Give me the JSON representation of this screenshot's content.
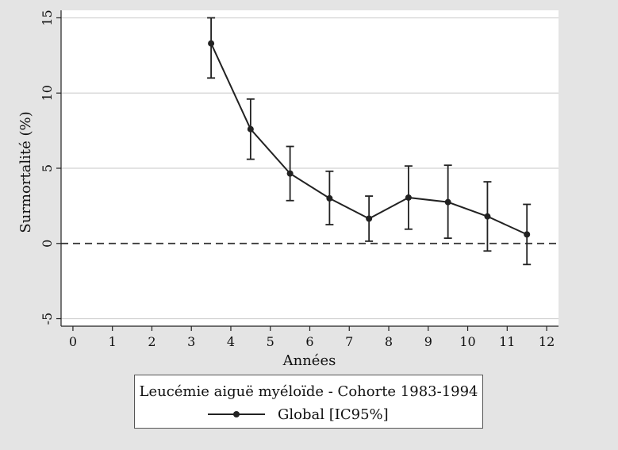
{
  "chart_data": {
    "type": "line",
    "title": "",
    "xlabel": "Années",
    "ylabel": "Surmortalité (%)",
    "xlim": [
      -0.3,
      12.3
    ],
    "ylim": [
      -5.5,
      15.5
    ],
    "x_ticks": [
      0,
      1,
      2,
      3,
      4,
      5,
      6,
      7,
      8,
      9,
      10,
      11,
      12
    ],
    "y_ticks": [
      -5,
      0,
      5,
      10,
      15
    ],
    "grid": "horizontal",
    "reference_line": {
      "y": 0,
      "style": "dashed"
    },
    "legend": {
      "title": "Leucémie aiguë myéloïde - Cohorte 1983-1994",
      "placement": "bottom",
      "entries": [
        "Global [IC95%]"
      ]
    },
    "series": [
      {
        "name": "Global [IC95%]",
        "x": [
          3.5,
          4.5,
          5.5,
          6.5,
          7.5,
          8.5,
          9.5,
          10.5,
          11.5
        ],
        "y": [
          13.3,
          7.6,
          4.65,
          3.0,
          1.65,
          3.05,
          2.75,
          1.8,
          0.6
        ],
        "ci_low": [
          11.0,
          5.6,
          2.85,
          1.25,
          0.15,
          0.95,
          0.35,
          -0.5,
          -1.4
        ],
        "ci_high": [
          15.0,
          9.6,
          6.45,
          4.8,
          3.15,
          5.15,
          5.2,
          4.1,
          2.6
        ]
      }
    ],
    "colors": {
      "line": "#222222",
      "background": "#e4e4e4",
      "plot": "#ffffff",
      "grid": "#d2d2d2"
    }
  }
}
